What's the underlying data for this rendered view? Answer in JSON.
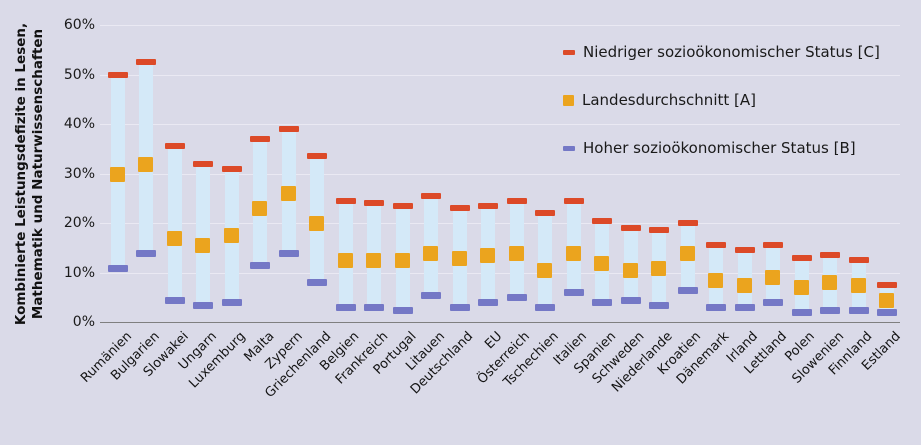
{
  "figure": {
    "background": "#dadae8",
    "gridline_color": "#eae9f3",
    "axis_color": "#7f7f7f",
    "text_color": "#1a1a1a"
  },
  "chart_data": {
    "type": "bar",
    "subtype": "floating-range-bars-with-markers",
    "title": "",
    "xlabel": "",
    "ylabel": "Kombinierte Leistungsdefizite in Lesen, Mathematik und Naturwissenschaften",
    "ylabel_lines": [
      "Kombinierte Leistungsdefizite in Lesen,",
      "Mathematik und Naturwissenschaften"
    ],
    "ylim": [
      0,
      60
    ],
    "yticks": [
      {
        "value": 0,
        "label": "0%"
      },
      {
        "value": 10,
        "label": "10%"
      },
      {
        "value": 20,
        "label": "20%"
      },
      {
        "value": 30,
        "label": "30%"
      },
      {
        "value": 40,
        "label": "40%"
      },
      {
        "value": 50,
        "label": "50%"
      },
      {
        "value": 60,
        "label": "60%"
      }
    ],
    "grid": true,
    "legend_position": "top-right",
    "bar_color": "#d4e9f8",
    "categories": [
      "Rumänien",
      "Bulgarien",
      "Slowakei",
      "Ungarn",
      "Luxemburg",
      "Malta",
      "Zypern",
      "Griechenland",
      "Belgien",
      "Frankreich",
      "Portugal",
      "Litauen",
      "Deutschland",
      "EU",
      "Österreich",
      "Tschechien",
      "Italien",
      "Spanien",
      "Schweden",
      "Niederlande",
      "Kroatien",
      "Dänemark",
      "Irland",
      "Lettland",
      "Polen",
      "Slowenien",
      "Finnland",
      "Estland"
    ],
    "series": [
      {
        "name": "Niedriger sozioökonomischer Status [C]",
        "marker": "dash",
        "color": "#dc4a28",
        "values": [
          50,
          52.5,
          35.5,
          32,
          31,
          37,
          39,
          33.5,
          24.5,
          24,
          23.5,
          25.5,
          23,
          23.5,
          24.5,
          22,
          24.5,
          20.5,
          19,
          18.5,
          20,
          15.5,
          14.5,
          15.5,
          13,
          13.5,
          12.5,
          7.5
        ]
      },
      {
        "name": "Landesdurchschnitt [A]",
        "marker": "square",
        "color": "#eba41e",
        "values": [
          30,
          32,
          17,
          15.5,
          17.5,
          23,
          26,
          20,
          12.5,
          12.5,
          12.5,
          14,
          13,
          13.5,
          14,
          10.5,
          14,
          12,
          10.5,
          11,
          14,
          8.5,
          7.5,
          9,
          7,
          8,
          7.5,
          4.5
        ]
      },
      {
        "name": "Hoher sozioökonomischer Status [B]",
        "marker": "dash",
        "color": "#7478c6",
        "values": [
          11,
          14,
          4.5,
          3.5,
          4,
          11.5,
          14,
          8,
          3,
          3,
          2.5,
          5.5,
          3,
          4,
          5,
          3,
          6,
          4,
          4.5,
          3.5,
          6.5,
          3,
          3,
          4,
          2,
          2.5,
          2.5,
          2
        ]
      }
    ]
  }
}
